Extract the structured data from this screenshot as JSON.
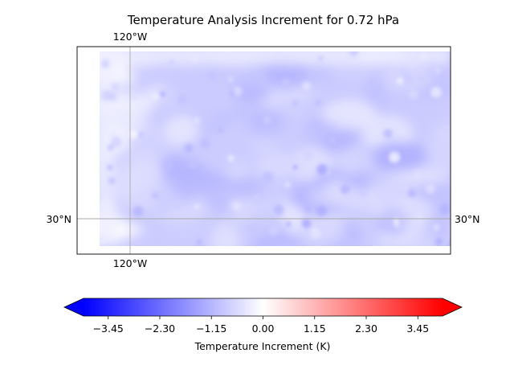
{
  "map": {
    "title": "Temperature Analysis Increment for  0.72 hPa",
    "gridlines": {
      "longitude": {
        "value": -120,
        "label": "120°W"
      },
      "latitude": {
        "value": 30,
        "label": "30°N"
      }
    }
  },
  "colorbar": {
    "label": "Temperature Increment (K)",
    "colormap": "bwr",
    "range": [
      -4.0,
      4.0
    ],
    "extend": "both",
    "ticks": [
      "−3.45",
      "−2.30",
      "−1.15",
      "0.00",
      "1.15",
      "2.30",
      "3.45"
    ],
    "tick_values": [
      -3.45,
      -2.3,
      -1.15,
      0.0,
      1.15,
      2.3,
      3.45
    ],
    "colors": {
      "low": "#0000ff",
      "mid": "#ffffff",
      "high": "#ff0000"
    }
  },
  "field": {
    "typical_value": -0.8,
    "min_value": -1.6,
    "max_value": 0.0
  }
}
